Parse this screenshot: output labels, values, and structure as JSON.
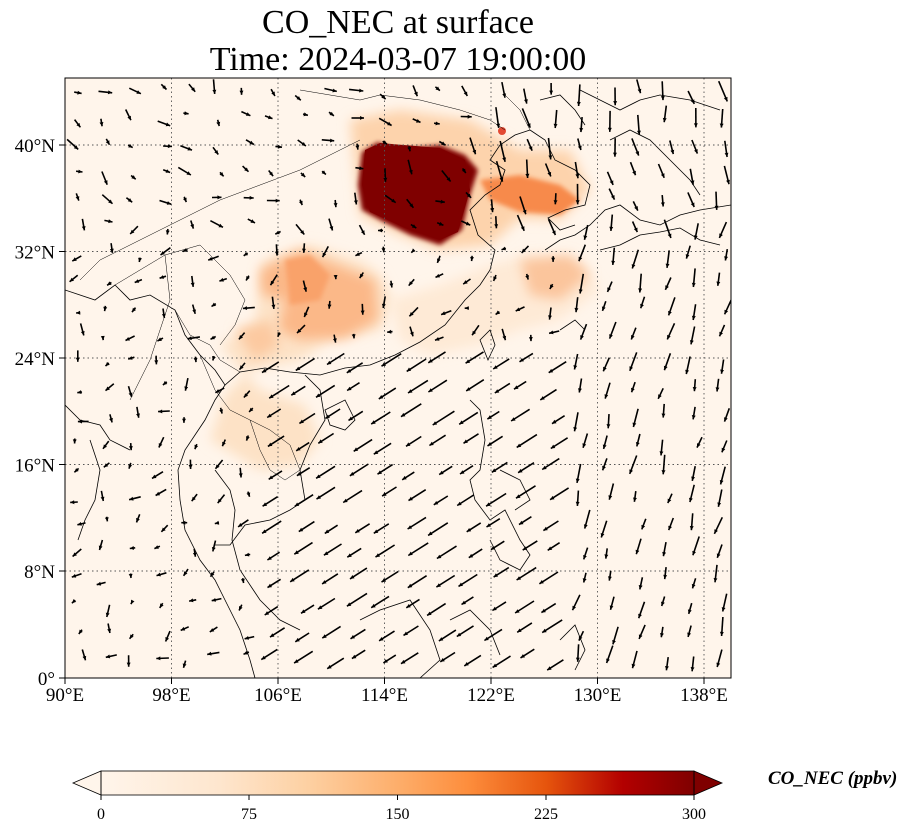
{
  "title": {
    "line1": "CO_NEC at surface",
    "line2": "Time: 2024-03-07 19:00:00"
  },
  "map": {
    "lon_range": [
      90,
      140
    ],
    "lat_range": [
      0,
      45
    ],
    "lon_ticks": [
      "90°E",
      "98°E",
      "106°E",
      "114°E",
      "122°E",
      "130°E",
      "138°E"
    ],
    "lat_ticks": [
      "0°",
      "8°N",
      "16°N",
      "24°N",
      "32°N",
      "40°N"
    ],
    "gridlines": "dotted",
    "field": "CO_NEC concentration (colour shading) with wind vectors (arrows)",
    "hotspot_region": "North China Plain",
    "colors": {
      "low": "#fff5eb",
      "mid": "#fdae6b",
      "high": "#d94801",
      "max": "#7f0000"
    }
  },
  "colorbar": {
    "label": "CO_NEC (ppbv)",
    "ticks": [
      "0",
      "75",
      "150",
      "225",
      "300"
    ],
    "range": [
      0,
      300
    ],
    "extend": "both"
  }
}
